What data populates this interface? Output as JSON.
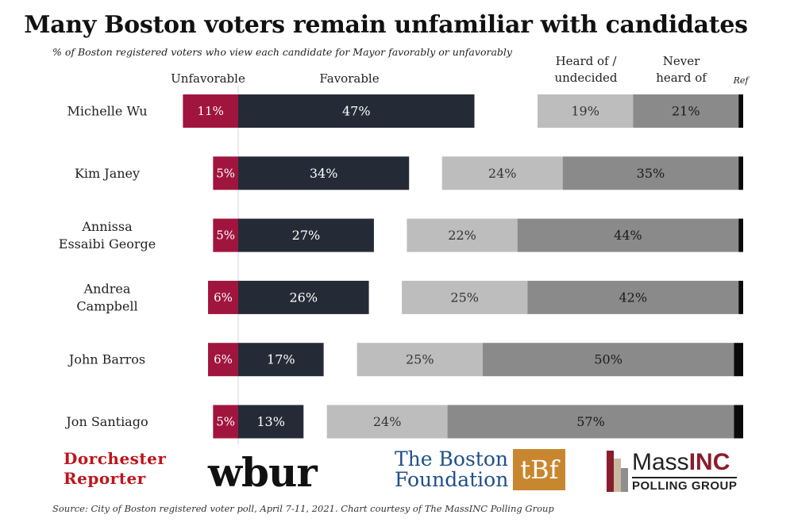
{
  "chart_data": {
    "type": "bar",
    "stacked": "diverging",
    "title": "Many Boston voters remain unfamiliar with candidates",
    "subtitle": "% of Boston registered voters who view each candidate for Mayor favorably or unfavorably",
    "column_headers": {
      "unfavorable": "Unfavorable",
      "favorable": "Favorable",
      "heard": "Heard of / undecided",
      "heard_line1": "Heard of /",
      "heard_line2": "undecided",
      "never": "Never heard of",
      "never_line1": "Never",
      "never_line2": "heard of",
      "ref": "Ref"
    },
    "colors": {
      "unfavorable": "#a0153e",
      "favorable": "#252b36",
      "heard": "#bdbdbd",
      "never": "#8a8a8a",
      "ref": "#0a0a0a"
    },
    "categories": [
      [
        "Michelle Wu"
      ],
      [
        "Kim Janey"
      ],
      [
        "Annissa",
        "Essaibi George"
      ],
      [
        "Andrea",
        "Campbell"
      ],
      [
        "John Barros"
      ],
      [
        "Jon Santiago"
      ]
    ],
    "series": [
      {
        "name": "Unfavorable",
        "values": [
          11,
          5,
          5,
          6,
          6,
          5
        ]
      },
      {
        "name": "Favorable",
        "values": [
          47,
          34,
          27,
          26,
          17,
          13
        ]
      },
      {
        "name": "Heard of / undecided",
        "values": [
          19,
          24,
          22,
          25,
          25,
          24
        ]
      },
      {
        "name": "Never heard of",
        "values": [
          21,
          35,
          44,
          42,
          50,
          57
        ]
      },
      {
        "name": "Ref",
        "values": [
          1,
          1,
          1,
          1,
          2,
          2
        ]
      }
    ],
    "labels": {
      "unfavorable": [
        "11%",
        "5%",
        "5%",
        "6%",
        "6%",
        "5%"
      ],
      "favorable": [
        "47%",
        "34%",
        "27%",
        "26%",
        "17%",
        "13%"
      ],
      "heard": [
        "19%",
        "24%",
        "22%",
        "25%",
        "25%",
        "24%"
      ],
      "never": [
        "21%",
        "35%",
        "44%",
        "42%",
        "50%",
        "57%"
      ]
    },
    "grid": false,
    "legend": "none"
  },
  "logos": {
    "dorchester_line1": "Dorchester",
    "dorchester_line2": "Reporter",
    "wbur": "wbur",
    "boston_foundation_line1": "The Boston",
    "boston_foundation_line2": "Foundation",
    "boston_foundation_mark": "tBf",
    "massinc_mass": "Mass",
    "massinc_inc": "INC",
    "massinc_sub": "POLLING GROUP"
  },
  "source": "Source: City of Boston registered voter poll, April 7-11, 2021. Chart courtesy of The MassINC Polling Group"
}
